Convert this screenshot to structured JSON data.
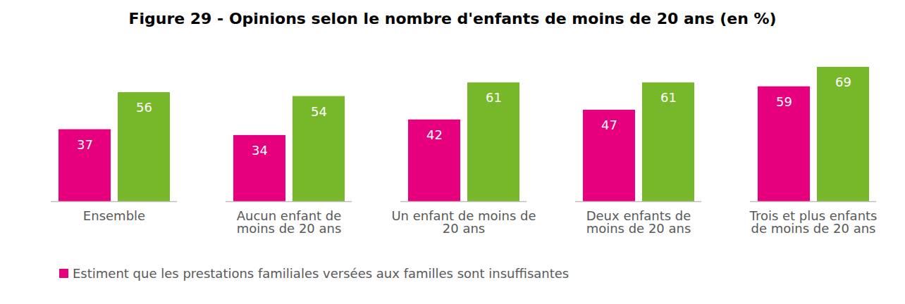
{
  "chart_data": {
    "type": "bar",
    "title": "Figure 29 - Opinions selon le nombre d'enfants de moins de 20 ans (en %)",
    "categories": [
      "Ensemble",
      "Aucun enfant de moins de 20 ans",
      "Un enfant de moins de 20 ans",
      "Deux enfants de moins de 20 ans",
      "Trois et plus enfants de moins de 20 ans"
    ],
    "series": [
      {
        "name": "Estiment que les prestations familiales versées aux familles sont insuffisantes",
        "color": "#e6007e",
        "values": [
          37,
          34,
          42,
          47,
          59
        ]
      },
      {
        "name": null,
        "color": "#76b82a",
        "values": [
          56,
          54,
          61,
          61,
          69
        ]
      }
    ],
    "ylim": [
      0,
      69
    ],
    "tick_labels": "x",
    "grid": false,
    "data_labels": true,
    "legend": "bottom-left"
  }
}
